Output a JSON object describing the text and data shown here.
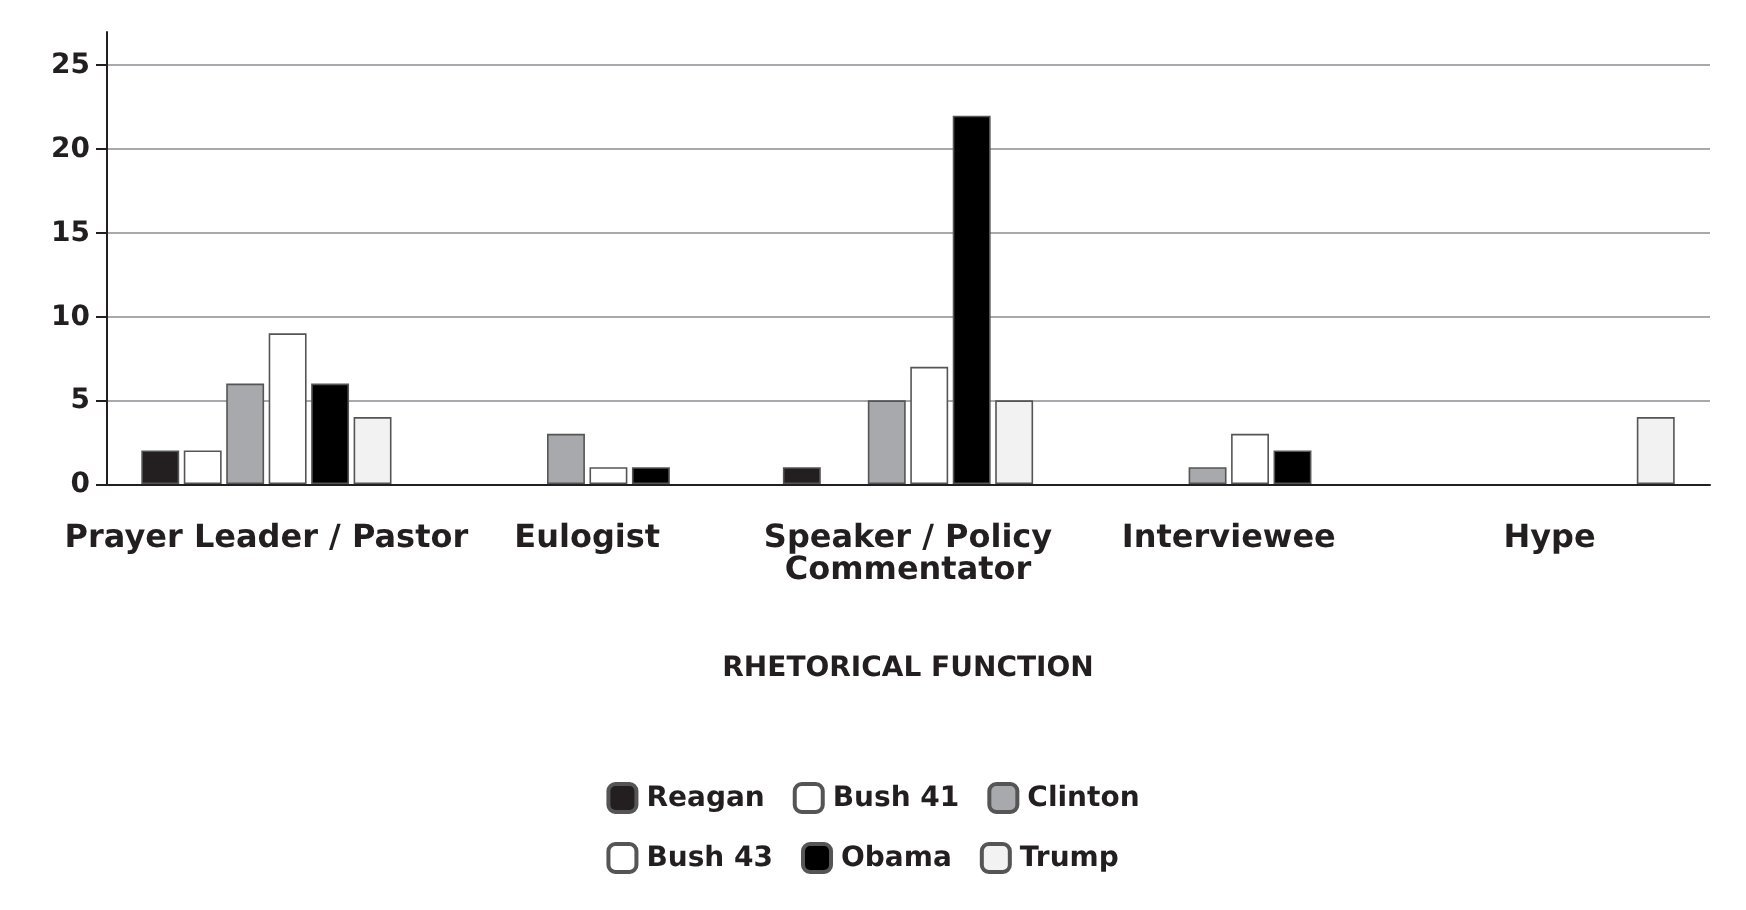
{
  "chart_data": {
    "type": "bar",
    "xlabel": "RHETORICAL FUNCTION",
    "categories": [
      "Prayer Leader / Pastor",
      "Eulogist",
      "Speaker / Policy\nCommentator",
      "Interviewee",
      "Hype"
    ],
    "series": [
      {
        "name": "Reagan",
        "color": "#231f20",
        "values": [
          2,
          0,
          1,
          0,
          0
        ]
      },
      {
        "name": "Bush 41",
        "color": "#ffffff",
        "values": [
          2,
          0,
          0,
          0,
          0
        ]
      },
      {
        "name": "Clinton",
        "color": "#a7a9ac",
        "values": [
          6,
          3,
          5,
          1,
          0
        ]
      },
      {
        "name": "Bush 43",
        "color": "#ffffff",
        "values": [
          9,
          1,
          7,
          3,
          0
        ]
      },
      {
        "name": "Obama",
        "color": "#000000",
        "values": [
          6,
          1,
          22,
          2,
          0
        ]
      },
      {
        "name": "Trump",
        "color": "#f2f2f2",
        "values": [
          4,
          0,
          5,
          0,
          4
        ]
      }
    ],
    "ylim": [
      0,
      27
    ],
    "yticks": [
      0,
      5,
      10,
      15,
      20,
      25
    ],
    "grid": "y",
    "legend": "bottom"
  }
}
